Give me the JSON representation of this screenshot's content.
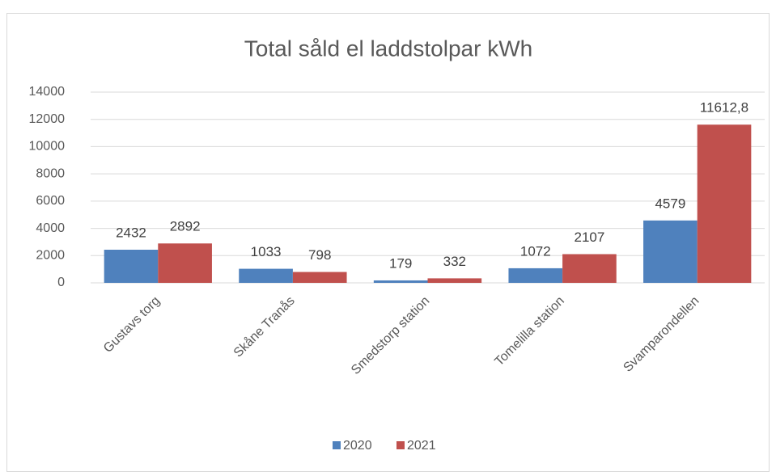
{
  "chart_data": {
    "type": "bar",
    "title": "Total såld el laddstolpar kWh",
    "categories": [
      "Gustavs torg",
      "Skåne Tranås",
      "Smedstorp station",
      "Tomelilla station",
      "Svamparondellen"
    ],
    "series": [
      {
        "name": "2020",
        "color": "#4f81bd",
        "values": [
          2432,
          1033,
          179,
          1072,
          4579
        ]
      },
      {
        "name": "2021",
        "color": "#c0504d",
        "values": [
          2892,
          798,
          332,
          2107,
          11612.8
        ],
        "value_labels": [
          null,
          null,
          null,
          null,
          "11612,8"
        ]
      }
    ],
    "ylim": [
      0,
      14000
    ],
    "yticks": [
      0,
      2000,
      4000,
      6000,
      8000,
      10000,
      12000,
      14000
    ],
    "grid": true,
    "legend": "bottom"
  }
}
